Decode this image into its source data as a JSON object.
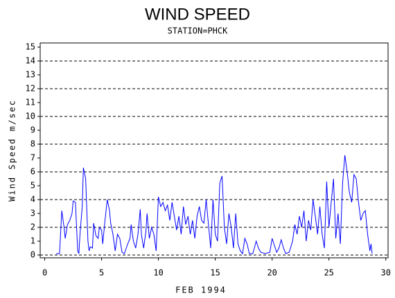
{
  "chart_data": {
    "type": "line",
    "title": "WIND SPEED",
    "subtitle": "STATION=PHCK",
    "x_label": "FEB 1994",
    "y_label": "Wind Speed m/sec",
    "xlim": [
      -0.4,
      30.2
    ],
    "xticks": [
      0,
      5,
      10,
      15,
      20,
      25,
      30
    ],
    "ylim": [
      -0.2,
      15.3
    ],
    "yticks": [
      0,
      1,
      2,
      3,
      4,
      5,
      6,
      7,
      8,
      9,
      10,
      11,
      12,
      13,
      14,
      15
    ],
    "grid": true,
    "ygrid": [
      0,
      2,
      4,
      6,
      8,
      10,
      12,
      14
    ],
    "series": [
      {
        "name": "Wind Speed",
        "color": "#0000ff",
        "x": [
          1.0,
          1.3,
          1.5,
          1.7,
          1.8,
          2.0,
          2.2,
          2.4,
          2.5,
          2.7,
          2.8,
          2.9,
          3.0,
          3.1,
          3.3,
          3.4,
          3.6,
          3.8,
          3.9,
          4.0,
          4.2,
          4.3,
          4.5,
          4.7,
          4.8,
          5.0,
          5.1,
          5.3,
          5.5,
          5.7,
          5.8,
          6.0,
          6.2,
          6.4,
          6.6,
          6.8,
          7.0,
          7.3,
          7.5,
          7.6,
          7.8,
          8.0,
          8.2,
          8.4,
          8.5,
          8.7,
          8.9,
          9.0,
          9.2,
          9.4,
          9.6,
          9.8,
          10.0,
          10.2,
          10.4,
          10.6,
          10.8,
          11.0,
          11.2,
          11.4,
          11.6,
          11.8,
          12.0,
          12.2,
          12.4,
          12.6,
          12.8,
          13.0,
          13.2,
          13.4,
          13.6,
          13.8,
          14.0,
          14.2,
          14.4,
          14.6,
          14.8,
          15.0,
          15.2,
          15.4,
          15.6,
          15.8,
          16.0,
          16.2,
          16.4,
          16.6,
          16.8,
          17.0,
          17.2,
          17.4,
          17.6,
          17.8,
          18.0,
          18.3,
          18.6,
          18.8,
          19.0,
          19.4,
          19.8,
          20.0,
          20.2,
          20.4,
          20.6,
          20.8,
          21.0,
          21.2,
          21.5,
          21.8,
          22.0,
          22.2,
          22.4,
          22.6,
          22.8,
          23.0,
          23.2,
          23.4,
          23.6,
          23.8,
          24.0,
          24.2,
          24.4,
          24.6,
          24.8,
          25.0,
          25.2,
          25.4,
          25.6,
          25.8,
          26.0,
          26.2,
          26.4,
          26.6,
          26.8,
          27.0,
          27.2,
          27.4,
          27.6,
          27.8,
          28.0,
          28.2,
          28.4,
          28.6,
          28.7,
          28.8
        ],
        "values": [
          0.1,
          0.1,
          3.2,
          2,
          1.2,
          2.2,
          2.5,
          3,
          3.9,
          3.8,
          2,
          0.3,
          0.1,
          1.5,
          3.5,
          6.3,
          5.5,
          1,
          0.3,
          0.6,
          0.5,
          2.3,
          1.4,
          1.2,
          2,
          1.8,
          0.8,
          2.5,
          4,
          3.2,
          2.3,
          1.5,
          0.3,
          1.5,
          1.2,
          0.2,
          0.1,
          0.8,
          1.2,
          2.2,
          1,
          0.5,
          1.5,
          3.3,
          1.5,
          0.5,
          1.7,
          3,
          1.2,
          2,
          1.5,
          0.3,
          4.2,
          3.5,
          3.8,
          3.2,
          3.6,
          2.5,
          3.8,
          2.8,
          1.8,
          2.8,
          1.5,
          3.5,
          2.2,
          2.8,
          1.5,
          2.5,
          1.2,
          2.8,
          3.5,
          2.5,
          2.3,
          4,
          2.2,
          0.5,
          4,
          1.5,
          1,
          5.2,
          5.7,
          2,
          0.8,
          3,
          2,
          0.5,
          3,
          0.8,
          0.3,
          0.1,
          1.2,
          0.8,
          0.1,
          0.1,
          1,
          0.5,
          0.2,
          0.1,
          0.2,
          1.2,
          0.7,
          0.2,
          0.5,
          1.1,
          0.5,
          0.1,
          0.2,
          1,
          2.2,
          1.5,
          2.8,
          2,
          3.2,
          1,
          2.5,
          1.8,
          4,
          2.8,
          1.5,
          3.5,
          1.5,
          0.5,
          5.3,
          2,
          3.8,
          5.5,
          1.2,
          3,
          0.8,
          5.2,
          7.2,
          6,
          4.5,
          3.8,
          5.8,
          5.5,
          3.8,
          2.5,
          3,
          3.2,
          1.5,
          0.3,
          0.8,
          0.1
        ]
      }
    ]
  }
}
